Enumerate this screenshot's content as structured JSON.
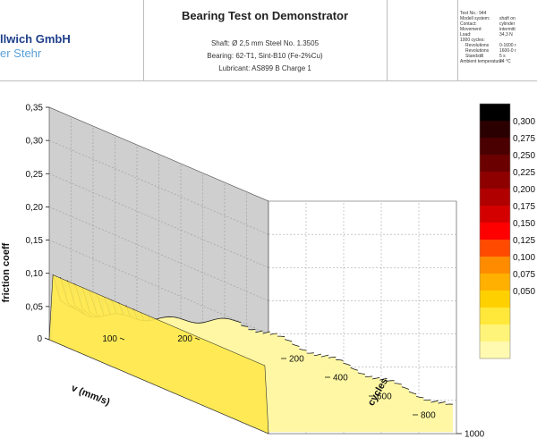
{
  "header": {
    "logo_line1": "llwich GmbH",
    "logo_line2": "er Stehr",
    "title": "Bearing Test on Demonstrator",
    "shaft": "Shaft: Ø 2,5 mm Steel No. 1.3505",
    "bearing": "Bearing: 62-T1, Sint-B10 (Fe-2%Cu)",
    "lubricant": "Lubricant: AS899 B Charge 1",
    "info": [
      {
        "key": "Test No.: 944",
        "value": ""
      },
      {
        "key": "Modell system:",
        "value": "shaft on"
      },
      {
        "key": "Contact:",
        "value": "cylinder"
      },
      {
        "key": "Movement:",
        "value": "intermitt"
      },
      {
        "key": "Load:",
        "value": "34,3 N"
      },
      {
        "key": "1000 cycles:",
        "value": ""
      },
      {
        "key": "Revolutions",
        "value": "0-1600 r",
        "indent": true
      },
      {
        "key": "Revolutions",
        "value": "1600-0 r",
        "indent": true
      },
      {
        "key": "Standstill",
        "value": "5 s",
        "indent": true
      },
      {
        "key": "Ambient temperature:",
        "value": "24 °C"
      }
    ]
  },
  "chart_data": {
    "type": "area",
    "title": "",
    "zlabel": "friction coeff",
    "xlabel": "v (mm/s)",
    "ylabel": "cycles",
    "zlim": [
      0,
      0.35
    ],
    "z_ticks": [
      "0,35",
      "0,30",
      "0,25",
      "0,20",
      "0,15",
      "0,10",
      "0,05"
    ],
    "v_ticks": [
      "0",
      "100",
      "200"
    ],
    "v_range": [
      0,
      250
    ],
    "cycle_ticks": [
      "200",
      "400",
      "600",
      "800",
      "1000"
    ],
    "cycle_range": [
      0,
      1000
    ],
    "grid": true,
    "n_curves": 30,
    "front_curve": {
      "v": [
        0,
        10,
        25,
        50,
        100,
        150,
        200,
        250
      ],
      "mu": [
        0.1,
        0.06,
        0.048,
        0.04,
        0.036,
        0.033,
        0.031,
        0.03
      ]
    },
    "back_curve": {
      "v": [
        0,
        10,
        25,
        50,
        100,
        150,
        200,
        250
      ],
      "mu": [
        0.1,
        0.088,
        0.078,
        0.068,
        0.055,
        0.048,
        0.042,
        0.038
      ]
    },
    "colorbar": {
      "labels": [
        "0,300",
        "0,275",
        "0,250",
        "0,225",
        "0,200",
        "0,175",
        "0,150",
        "0,125",
        "0,100",
        "0,075",
        "0,050"
      ],
      "colors": [
        "#000000",
        "#2a0000",
        "#4a0000",
        "#6b0000",
        "#8e0000",
        "#b00000",
        "#d40000",
        "#ff0000",
        "#ff4a00",
        "#ff8c00",
        "#ffb000",
        "#ffd000",
        "#ffe83a",
        "#fff47a",
        "#fffab0"
      ]
    }
  }
}
